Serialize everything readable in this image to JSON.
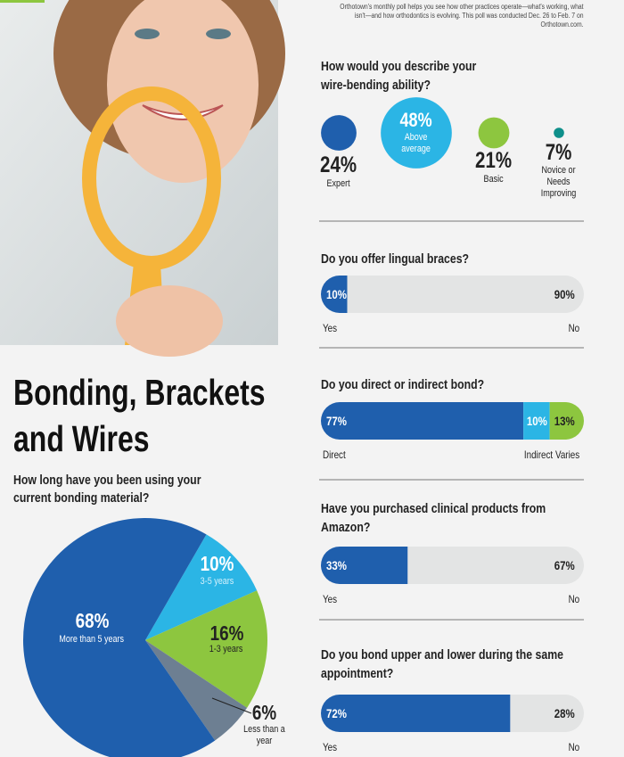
{
  "intro": "Orthotown's monthly poll helps you see how other practices operate—what's working, what isn't—and how orthodontics is evolving. This poll was conducted Dec. 26 to Feb. 7 on Orthotown.com.",
  "title": "Bonding, Brackets and Wires",
  "chart_data": [
    {
      "type": "bubble",
      "title": "How would you describe your wire-bending ability?",
      "categories": [
        "Expert",
        "Above average",
        "Basic",
        "Novice or Needs Improving"
      ],
      "values": [
        24,
        48,
        21,
        7
      ],
      "value_labels": [
        "24%",
        "48%",
        "21%",
        "7%"
      ],
      "colors": [
        "#1f5fad",
        "#2bb5e5",
        "#8dc63f",
        "#0e8f8a"
      ]
    },
    {
      "type": "bar",
      "title": "Do you offer lingual braces?",
      "categories": [
        "Yes",
        "No"
      ],
      "values": [
        10,
        90
      ],
      "value_labels": [
        "10%",
        "90%"
      ],
      "colors": [
        "#1f5fad",
        "#e3e4e4"
      ]
    },
    {
      "type": "bar",
      "title": "Do you direct or indirect bond?",
      "categories": [
        "Direct",
        "Indirect",
        "Varies"
      ],
      "values": [
        77,
        10,
        13
      ],
      "value_labels": [
        "77%",
        "10%",
        "13%"
      ],
      "colors": [
        "#1f5fad",
        "#2bb5e5",
        "#8dc63f"
      ]
    },
    {
      "type": "bar",
      "title": "Have you purchased clinical products from Amazon?",
      "categories": [
        "Yes",
        "No"
      ],
      "values": [
        33,
        67
      ],
      "value_labels": [
        "33%",
        "67%"
      ],
      "colors": [
        "#1f5fad",
        "#e3e4e4"
      ]
    },
    {
      "type": "bar",
      "title": "Do you bond upper and lower during the same appointment?",
      "categories": [
        "Yes",
        "No"
      ],
      "values": [
        72,
        28
      ],
      "value_labels": [
        "72%",
        "28%"
      ],
      "colors": [
        "#1f5fad",
        "#e3e4e4"
      ]
    },
    {
      "type": "pie",
      "title": "How long have you been using your current bonding material?",
      "categories": [
        "3-5 years",
        "1-3 years",
        "Less than a year",
        "More than 5 years"
      ],
      "values": [
        10,
        16,
        6,
        68
      ],
      "value_labels": [
        "10%",
        "16%",
        "6%",
        "68%"
      ],
      "colors": [
        "#2bb5e5",
        "#8dc63f",
        "#6d7f92",
        "#1f5fad"
      ]
    }
  ]
}
